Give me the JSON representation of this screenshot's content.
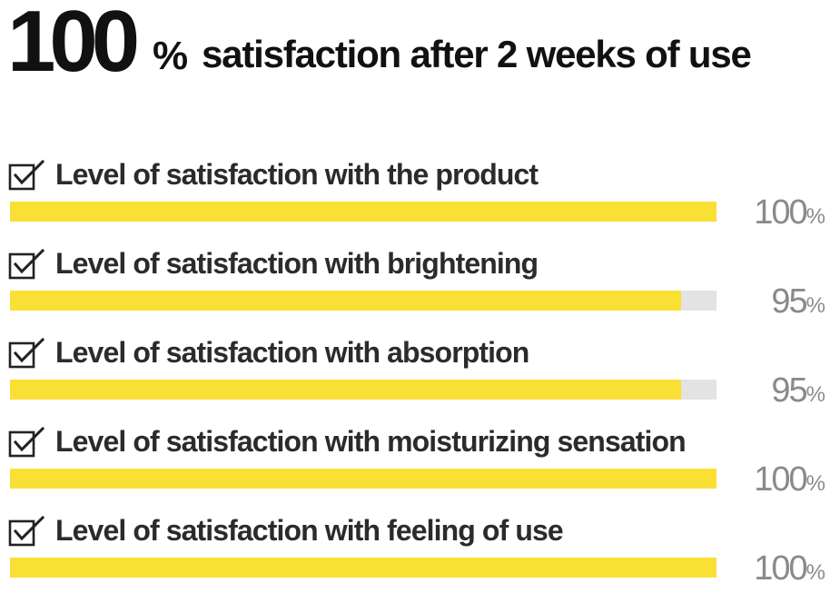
{
  "headline": {
    "big_number": "100",
    "percent_sign": "%",
    "rest": "satisfaction after 2 weeks of use"
  },
  "colors": {
    "bar_fill": "#fadf35",
    "bar_track": "#e3e3e3",
    "value_text": "#8a8a8a",
    "label_text": "#2b2b2b"
  },
  "chart_data": {
    "type": "bar",
    "orientation": "horizontal",
    "title": "100% satisfaction after 2 weeks of use",
    "unit": "%",
    "xlim": [
      0,
      100
    ],
    "grid": false,
    "icon": "checkbox-checked-icon",
    "categories": [
      "Level of satisfaction with the product",
      "Level of satisfaction with brightening",
      "Level of satisfaction with absorption",
      "Level of satisfaction with moisturizing sensation",
      "Level of satisfaction with feeling of use"
    ],
    "values": [
      100,
      95,
      95,
      100,
      100
    ],
    "value_labels": [
      "100",
      "95",
      "95",
      "100",
      "100"
    ]
  }
}
